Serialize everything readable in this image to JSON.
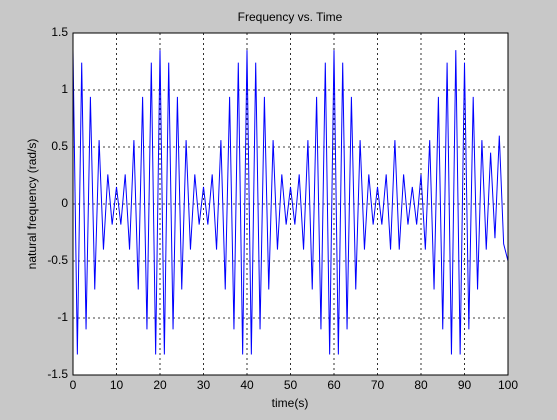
{
  "chart_data": {
    "type": "line",
    "title": "Frequency vs. Time",
    "xlabel": "time(s)",
    "ylabel": "natural frequency (rad/s)",
    "x": [
      0,
      1,
      2,
      3,
      4,
      5,
      6,
      7,
      8,
      9,
      10,
      11,
      12,
      13,
      14,
      15,
      16,
      17,
      18,
      19,
      20,
      21,
      22,
      23,
      24,
      25,
      26,
      27,
      28,
      29,
      30,
      31,
      32,
      33,
      34,
      35,
      36,
      37,
      38,
      39,
      40,
      41,
      42,
      43,
      44,
      45,
      46,
      47,
      48,
      49,
      50,
      51,
      52,
      53,
      54,
      55,
      56,
      57,
      58,
      59,
      60,
      61,
      62,
      63,
      64,
      65,
      66,
      67,
      68,
      69,
      70,
      71,
      72,
      73,
      74,
      75,
      76,
      77,
      78,
      79,
      80,
      81,
      82,
      83,
      84,
      85,
      86,
      87,
      88,
      89,
      90,
      91,
      92,
      93,
      94,
      95,
      96,
      97,
      98,
      99,
      100
    ],
    "series": [
      {
        "color": "#0000ff",
        "values": [
          1.35,
          -1.32,
          1.24,
          -1.1,
          0.94,
          -0.75,
          0.56,
          -0.4,
          0.26,
          -0.18,
          0.15,
          -0.18,
          0.26,
          -0.4,
          0.56,
          -0.75,
          0.94,
          -1.1,
          1.24,
          -1.32,
          1.35,
          -1.32,
          1.24,
          -1.1,
          0.94,
          -0.75,
          0.56,
          -0.4,
          0.26,
          -0.18,
          0.15,
          -0.18,
          0.26,
          -0.4,
          0.56,
          -0.75,
          0.94,
          -1.1,
          1.24,
          -1.32,
          1.35,
          -1.32,
          1.24,
          -1.1,
          0.94,
          -0.75,
          0.56,
          -0.4,
          0.26,
          -0.18,
          0.15,
          -0.18,
          0.26,
          -0.4,
          0.56,
          -0.75,
          0.94,
          -1.1,
          1.24,
          -1.32,
          1.35,
          -1.32,
          1.24,
          -1.1,
          0.94,
          -0.75,
          0.56,
          -0.4,
          0.26,
          -0.18,
          0.15,
          -0.18,
          0.26,
          -0.4,
          0.56,
          -0.4,
          0.26,
          -0.18,
          0.15,
          -0.18,
          0.26,
          -0.4,
          0.56,
          -0.75,
          0.94,
          -1.1,
          1.24,
          -1.32,
          1.35,
          -1.32,
          1.24,
          -1.1,
          0.94,
          -0.75,
          0.56,
          -0.4,
          0.45,
          -0.3,
          0.6,
          -0.35,
          -0.5
        ]
      }
    ],
    "xlim": [
      0,
      100
    ],
    "xticks": [
      0,
      10,
      20,
      30,
      40,
      50,
      60,
      70,
      80,
      90,
      100
    ],
    "ylim": [
      -1.5,
      1.5
    ],
    "yticks": [
      -1.5,
      -1,
      -0.5,
      0,
      0.5,
      1,
      1.5
    ],
    "grid": true
  }
}
